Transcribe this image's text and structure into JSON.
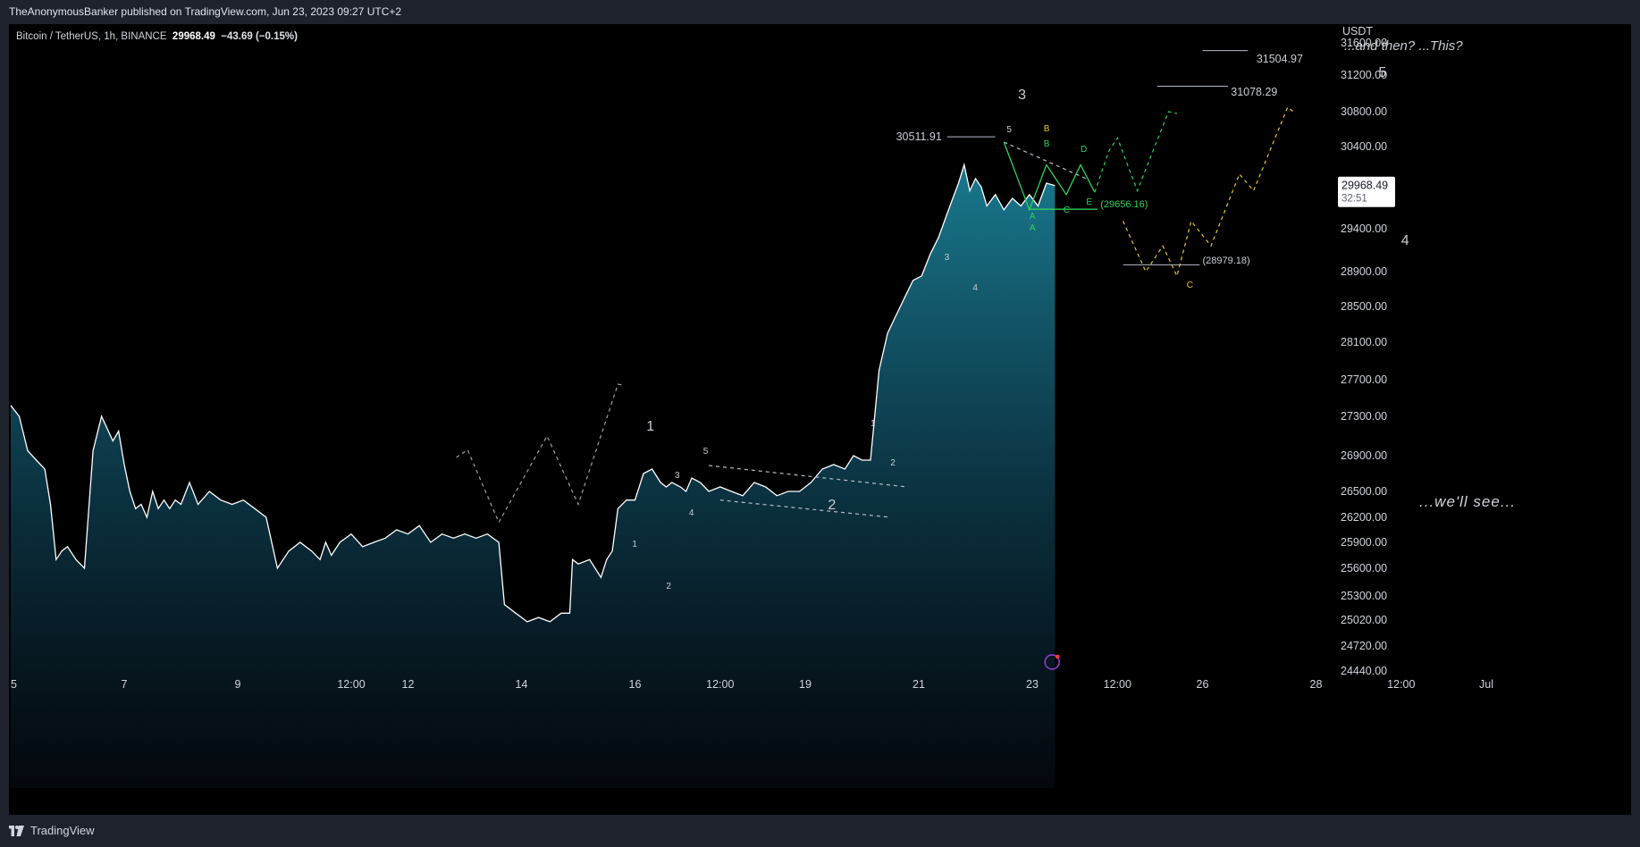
{
  "header": {
    "publisher": "TheAnonymousBanker published on TradingView.com, Jun 23, 2023 09:27 UTC+2"
  },
  "symbol": {
    "name": "Bitcoin / TetherUS, 1h, BINANCE",
    "price": "29968.49",
    "change": "−43.69 (−0.15%)"
  },
  "axis": {
    "currency": "USDT",
    "current_price": "29968.49",
    "countdown": "32:51"
  },
  "footer": {
    "brand": "TradingView"
  },
  "colors": {
    "background": "#000000",
    "frame": "#1e222d",
    "price_line": "#ffffff",
    "area_top": "#1a7f95",
    "area_bottom": "#060d16",
    "green_path": "#2fd35a",
    "yellow_path": "#e8c532",
    "arrow": "#707585"
  },
  "chart_data": {
    "type": "area",
    "title": "",
    "xlabel": "",
    "ylabel": "",
    "ylim": [
      24440,
      31600
    ],
    "y_ticks": [
      24440,
      24720,
      25020,
      25300,
      25600,
      25900,
      26200,
      26500,
      26900,
      27300,
      27700,
      28100,
      28500,
      28900,
      29400,
      30000,
      30400,
      30800,
      31200,
      31600
    ],
    "y_tick_labels": [
      "24440.00",
      "24720.00",
      "25020.00",
      "25300.00",
      "25600.00",
      "25900.00",
      "26200.00",
      "26500.00",
      "26900.00",
      "27300.00",
      "27700.00",
      "28100.00",
      "28500.00",
      "28900.00",
      "29400.00",
      "30000.00",
      "30400.00",
      "30800.00",
      "31200.00",
      "31600.00"
    ],
    "x_tick_labels": [
      "5",
      "7",
      "9",
      "12:00",
      "12",
      "14",
      "16",
      "12:00",
      "19",
      "21",
      "23",
      "12:00",
      "26",
      "28",
      "12:00",
      "Jul"
    ],
    "x_tick_days": [
      5,
      7,
      9,
      11,
      12,
      14,
      16,
      17.5,
      19,
      21,
      23,
      24.5,
      26,
      28,
      29.5,
      31
    ],
    "xlim_days": [
      5,
      31.8
    ],
    "series": [
      {
        "x": [
          5.0,
          5.15,
          5.3,
          5.45,
          5.6,
          5.7,
          5.8,
          5.9,
          6.0,
          6.15,
          6.3,
          6.45,
          6.6,
          6.8,
          6.9,
          7.0,
          7.1,
          7.2,
          7.3,
          7.4,
          7.5,
          7.6,
          7.7,
          7.8,
          7.9,
          8.0,
          8.15,
          8.3,
          8.5,
          8.7,
          8.9,
          9.1,
          9.3,
          9.5,
          9.7,
          9.9,
          10.1,
          10.3,
          10.45,
          10.55,
          10.65,
          10.8,
          11.0,
          11.2,
          11.4,
          11.6,
          11.8,
          12.0,
          12.2,
          12.4,
          12.6,
          12.8,
          13.0,
          13.2,
          13.4,
          13.6,
          13.7,
          13.9,
          14.1,
          14.3,
          14.5,
          14.7,
          14.85,
          14.9,
          15.0,
          15.2,
          15.4,
          15.5,
          15.6,
          15.7,
          15.85,
          16.0,
          16.15,
          16.3,
          16.45,
          16.55,
          16.65,
          16.8,
          16.9,
          17.0,
          17.15,
          17.3,
          17.5,
          17.7,
          17.9,
          18.1,
          18.3,
          18.5,
          18.7,
          18.9,
          19.1,
          19.3,
          19.5,
          19.7,
          19.85,
          20.0,
          20.15,
          20.3,
          20.45,
          20.6,
          20.75,
          20.9,
          21.05,
          21.2,
          21.35,
          21.5,
          21.6,
          21.7,
          21.8,
          21.9,
          22.0,
          22.1,
          22.2,
          22.35,
          22.5,
          22.65,
          22.8,
          22.95,
          23.1,
          23.25,
          23.4
        ],
        "values": [
          27420,
          27300,
          26950,
          26850,
          26750,
          26350,
          25700,
          25800,
          25850,
          25700,
          25600,
          26950,
          27300,
          27050,
          27150,
          26800,
          26500,
          26300,
          26350,
          26200,
          26500,
          26300,
          26400,
          26300,
          26400,
          26350,
          26600,
          26350,
          26500,
          26400,
          26350,
          26400,
          26300,
          26200,
          25600,
          25800,
          25900,
          25800,
          25700,
          25900,
          25750,
          25900,
          26000,
          25850,
          25900,
          25950,
          26050,
          26000,
          26100,
          25900,
          26000,
          25950,
          26000,
          25950,
          26000,
          25900,
          25200,
          25100,
          25000,
          25050,
          25000,
          25100,
          25100,
          25700,
          25650,
          25700,
          25500,
          25700,
          25800,
          26300,
          26400,
          26400,
          26700,
          26750,
          26600,
          26550,
          26600,
          26550,
          26500,
          26650,
          26600,
          26500,
          26550,
          26500,
          26450,
          26600,
          26550,
          26450,
          26500,
          26500,
          26600,
          26750,
          26800,
          26750,
          26900,
          26850,
          26850,
          27800,
          28200,
          28400,
          28600,
          28800,
          28850,
          29100,
          29300,
          29600,
          29800,
          30000,
          30200,
          29900,
          30050,
          29950,
          29700,
          29850,
          29650,
          29800,
          29700,
          29850,
          29700,
          30000,
          29968
        ]
      }
    ],
    "last_value": 29968.49
  },
  "annotations": {
    "wave_big": [
      "1",
      "2",
      "3",
      "4",
      "5"
    ],
    "wave_small": [
      "1",
      "2",
      "3",
      "4",
      "5",
      "1",
      "2",
      "3",
      "4",
      "5",
      "1",
      "2",
      "3",
      "4",
      "5"
    ],
    "abc_green": [
      "A",
      "B",
      "C",
      "D",
      "E",
      "A",
      "B"
    ],
    "c_yellow": "C",
    "levels": [
      "30511.91",
      "31078.29",
      "31504.97",
      "(29656.16)",
      "(28979.18)"
    ],
    "note_top": "...and then? ...This?",
    "note_bottom": "...we'll see..."
  }
}
